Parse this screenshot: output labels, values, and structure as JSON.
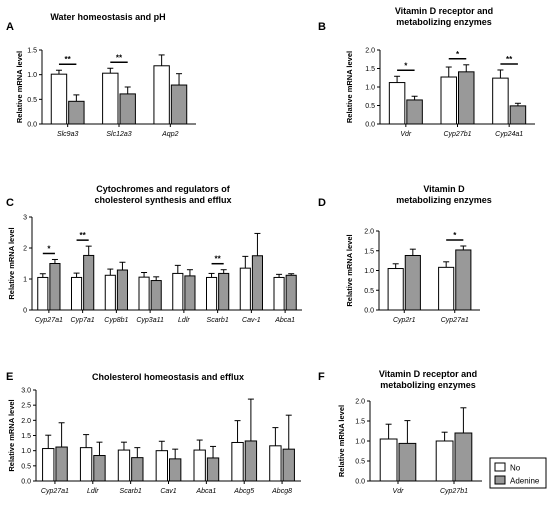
{
  "colors": {
    "no": "#ffffff",
    "adenine": "#999999",
    "stroke": "#000000"
  },
  "legend": {
    "items": [
      {
        "label": "No",
        "color": "#ffffff"
      },
      {
        "label": "Adenine",
        "color": "#999999"
      }
    ]
  },
  "chart_data": [
    {
      "id": "A",
      "letter": "A",
      "type": "bar",
      "title_lines": [
        "Water homeostasis and pH"
      ],
      "ylabel": "Relative mRNA level",
      "ylim": [
        0,
        1.5
      ],
      "yticks": [
        0.0,
        0.5,
        1.0,
        1.5
      ],
      "categories": [
        "Slc9a3",
        "Slc12a3",
        "Aqp2"
      ],
      "series": [
        {
          "name": "No",
          "values": [
            1.01,
            1.03,
            1.18
          ],
          "errors": [
            0.08,
            0.1,
            0.22
          ]
        },
        {
          "name": "Adenine",
          "values": [
            0.46,
            0.61,
            0.79
          ],
          "errors": [
            0.13,
            0.14,
            0.23
          ]
        }
      ],
      "significance": [
        {
          "index": 0,
          "label": "**"
        },
        {
          "index": 1,
          "label": "**"
        }
      ]
    },
    {
      "id": "B",
      "letter": "B",
      "type": "bar",
      "title_lines": [
        "Vitamin D receptor and",
        "metabolizing enzymes"
      ],
      "ylabel": "Relative mRNA level",
      "ylim": [
        0,
        2.0
      ],
      "yticks": [
        0.0,
        0.5,
        1.0,
        1.5,
        2.0
      ],
      "categories": [
        "Vdr",
        "Cyp27b1",
        "Cyp24a1"
      ],
      "series": [
        {
          "name": "No",
          "values": [
            1.12,
            1.27,
            1.24
          ],
          "errors": [
            0.17,
            0.27,
            0.22
          ]
        },
        {
          "name": "Adenine",
          "values": [
            0.65,
            1.41,
            0.49
          ],
          "errors": [
            0.1,
            0.19,
            0.07
          ]
        }
      ],
      "significance": [
        {
          "index": 0,
          "label": "*"
        },
        {
          "index": 1,
          "label": "*"
        },
        {
          "index": 2,
          "label": "**"
        }
      ]
    },
    {
      "id": "C",
      "letter": "C",
      "type": "bar",
      "title_lines": [
        "Cytochromes and regulators of",
        "cholesterol synthesis and efflux"
      ],
      "ylabel": "Relative mRNA level",
      "ylim": [
        0,
        3
      ],
      "yticks": [
        0,
        1,
        2,
        3
      ],
      "categories": [
        "Cyp27a1",
        "Cyp7a1",
        "Cyp8b1",
        "Cyp3a11",
        "Ldlr",
        "Scarb1",
        "Cav-1",
        "Abca1"
      ],
      "series": [
        {
          "name": "No",
          "values": [
            1.05,
            1.05,
            1.12,
            1.06,
            1.18,
            1.05,
            1.35,
            1.05
          ],
          "errors": [
            0.12,
            0.14,
            0.2,
            0.15,
            0.26,
            0.13,
            0.38,
            0.1
          ]
        },
        {
          "name": "Adenine",
          "values": [
            1.5,
            1.76,
            1.29,
            0.95,
            1.1,
            1.18,
            1.75,
            1.12
          ],
          "errors": [
            0.13,
            0.3,
            0.25,
            0.12,
            0.2,
            0.12,
            0.72,
            0.05
          ]
        }
      ],
      "significance": [
        {
          "index": 0,
          "label": "*"
        },
        {
          "index": 1,
          "label": "**"
        },
        {
          "index": 5,
          "label": "**"
        }
      ]
    },
    {
      "id": "D",
      "letter": "D",
      "type": "bar",
      "title_lines": [
        "Vitamin D",
        "metabolizing enzymes"
      ],
      "ylabel": "Relative mRNA level",
      "ylim": [
        0,
        2.0
      ],
      "yticks": [
        0.0,
        0.5,
        1.0,
        1.5,
        2.0
      ],
      "categories": [
        "Cyp2r1",
        "Cyp27a1"
      ],
      "series": [
        {
          "name": "No",
          "values": [
            1.05,
            1.08
          ],
          "errors": [
            0.12,
            0.14
          ]
        },
        {
          "name": "Adenine",
          "values": [
            1.38,
            1.52
          ],
          "errors": [
            0.16,
            0.1
          ]
        }
      ],
      "significance": [
        {
          "index": 1,
          "label": "*"
        }
      ]
    },
    {
      "id": "E",
      "letter": "E",
      "type": "bar",
      "title_lines": [
        "Cholesterol homeostasis and efflux"
      ],
      "ylabel": "Relative mRNA level",
      "ylim": [
        0,
        3.0
      ],
      "yticks": [
        0.0,
        0.5,
        1.0,
        1.5,
        2.0,
        2.5,
        3.0
      ],
      "categories": [
        "Cyp27a1",
        "Ldlr",
        "Scarb1",
        "Cav1",
        "Abca1",
        "Abcg5",
        "Abcg8"
      ],
      "series": [
        {
          "name": "No",
          "values": [
            1.07,
            1.1,
            1.02,
            1.0,
            1.02,
            1.27,
            1.16
          ],
          "errors": [
            0.44,
            0.43,
            0.26,
            0.31,
            0.33,
            0.72,
            0.6
          ]
        },
        {
          "name": "Adenine",
          "values": [
            1.12,
            0.84,
            0.77,
            0.73,
            0.76,
            1.32,
            1.05
          ],
          "errors": [
            0.8,
            0.44,
            0.33,
            0.32,
            0.38,
            1.38,
            1.12
          ]
        }
      ],
      "significance": []
    },
    {
      "id": "F",
      "letter": "F",
      "type": "bar",
      "title_lines": [
        "Vitamin D receptor and",
        "metabolizing enzymes"
      ],
      "ylabel": "Relative mRNA level",
      "ylim": [
        0,
        2.0
      ],
      "yticks": [
        0.0,
        0.5,
        1.0,
        1.5,
        2.0
      ],
      "categories": [
        "Vdr",
        "Cyp27b1"
      ],
      "series": [
        {
          "name": "No",
          "values": [
            1.05,
            1.0
          ],
          "errors": [
            0.37,
            0.22
          ]
        },
        {
          "name": "Adenine",
          "values": [
            0.94,
            1.2
          ],
          "errors": [
            0.57,
            0.63
          ]
        }
      ],
      "significance": []
    }
  ]
}
